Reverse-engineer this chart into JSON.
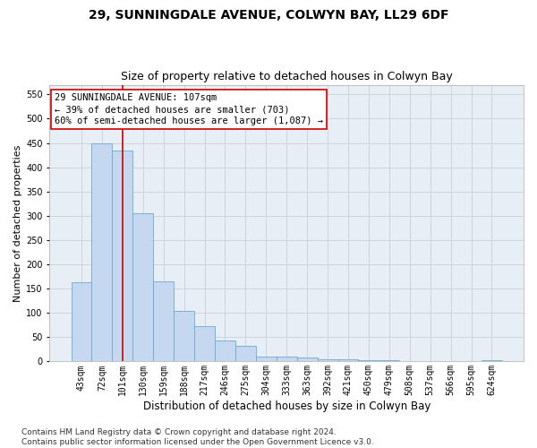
{
  "title": "29, SUNNINGDALE AVENUE, COLWYN BAY, LL29 6DF",
  "subtitle": "Size of property relative to detached houses in Colwyn Bay",
  "xlabel": "Distribution of detached houses by size in Colwyn Bay",
  "ylabel": "Number of detached properties",
  "categories": [
    "43sqm",
    "72sqm",
    "101sqm",
    "130sqm",
    "159sqm",
    "188sqm",
    "217sqm",
    "246sqm",
    "275sqm",
    "304sqm",
    "333sqm",
    "363sqm",
    "392sqm",
    "421sqm",
    "450sqm",
    "479sqm",
    "508sqm",
    "537sqm",
    "566sqm",
    "595sqm",
    "624sqm"
  ],
  "values": [
    163,
    450,
    435,
    305,
    165,
    105,
    72,
    43,
    33,
    10,
    10,
    8,
    4,
    4,
    2,
    2,
    1,
    1,
    1,
    1,
    3
  ],
  "bar_color": "#c5d8ef",
  "bar_edge_color": "#6aaad4",
  "bar_linewidth": 0.6,
  "vline_x_index": 2,
  "vline_color": "#cc0000",
  "annotation_line1": "29 SUNNINGDALE AVENUE: 107sqm",
  "annotation_line2": "← 39% of detached houses are smaller (703)",
  "annotation_line3": "60% of semi-detached houses are larger (1,087) →",
  "annotation_box_color": "#ffffff",
  "annotation_box_edgecolor": "#cc0000",
  "ylim": [
    0,
    570
  ],
  "yticks": [
    0,
    50,
    100,
    150,
    200,
    250,
    300,
    350,
    400,
    450,
    500,
    550
  ],
  "grid_color": "#c8d0dc",
  "plot_bg_color": "#e8eef5",
  "fig_bg_color": "#ffffff",
  "footer_text": "Contains HM Land Registry data © Crown copyright and database right 2024.\nContains public sector information licensed under the Open Government Licence v3.0.",
  "title_fontsize": 10,
  "subtitle_fontsize": 9,
  "xlabel_fontsize": 8.5,
  "ylabel_fontsize": 8,
  "tick_fontsize": 7,
  "annotation_fontsize": 7.5,
  "footer_fontsize": 6.5
}
